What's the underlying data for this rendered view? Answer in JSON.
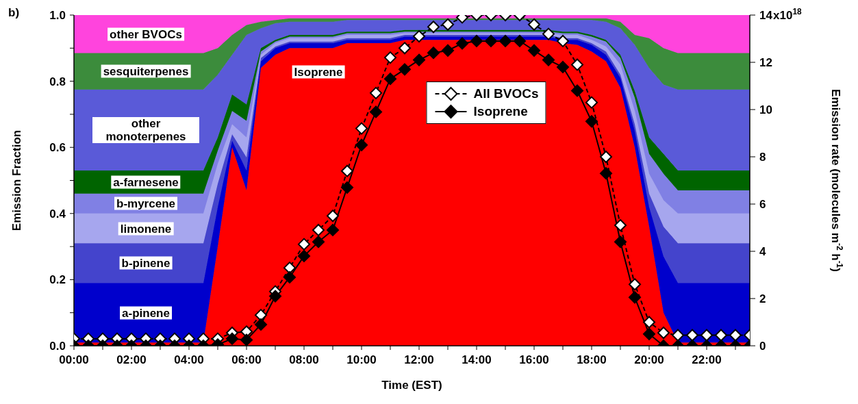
{
  "chart_data": {
    "type": "area",
    "stacked": true,
    "annotations": [
      "b)",
      "x10$^{18}$"
    ],
    "xlabel": "Time (EST)",
    "ylabel": "Emission Fraction",
    "y2label": "Emission rate (molecules m$^{-2}$ h$^{-1}$)",
    "legend": "top",
    "x": [
      0,
      0.5,
      1,
      1.5,
      2,
      2.5,
      3,
      3.5,
      4,
      4.5,
      5,
      5.5,
      6,
      6.5,
      7,
      7.5,
      8,
      8.5,
      9,
      9.5,
      10,
      10.5,
      11,
      11.5,
      12,
      12.5,
      13,
      13.5,
      14,
      14.5,
      15,
      15.5,
      16,
      16.5,
      17,
      17.5,
      18,
      18.5,
      19,
      19.5,
      20,
      20.5,
      21,
      21.5,
      22,
      22.5,
      23,
      23.5
    ],
    "xlim": [
      0,
      23.5
    ],
    "xticks": [
      {
        "value": 0,
        "label": "00:00"
      },
      {
        "value": 1,
        "label": null
      },
      {
        "value": 2,
        "label": "02:00"
      },
      {
        "value": 3,
        "label": null
      },
      {
        "value": 4,
        "label": "04:00"
      },
      {
        "value": 5,
        "label": null
      },
      {
        "value": 6,
        "label": "06:00"
      },
      {
        "value": 7,
        "label": null
      },
      {
        "value": 8,
        "label": "08:00"
      },
      {
        "value": 9,
        "label": null
      },
      {
        "value": 10,
        "label": "10:00"
      },
      {
        "value": 11,
        "label": null
      },
      {
        "value": 12,
        "label": "12:00"
      },
      {
        "value": 13,
        "label": null
      },
      {
        "value": 14,
        "label": "14:00"
      },
      {
        "value": 15,
        "label": null
      },
      {
        "value": 16,
        "label": "16:00"
      },
      {
        "value": 17,
        "label": null
      },
      {
        "value": 18,
        "label": "18:00"
      },
      {
        "value": 19,
        "label": null
      },
      {
        "value": 20,
        "label": "20:00"
      },
      {
        "value": 21,
        "label": null
      },
      {
        "value": 22,
        "label": "22:00"
      },
      {
        "value": 23,
        "label": null
      }
    ],
    "ylim": [
      0,
      1
    ],
    "yticks": [
      {
        "value": 0,
        "label": "0.0"
      },
      {
        "value": 0.1,
        "label": null
      },
      0.2,
      {
        "value": 0.3,
        "label": null
      },
      0.4,
      {
        "value": 0.5,
        "label": null
      },
      0.6,
      {
        "value": 0.7,
        "label": null
      },
      0.8,
      {
        "value": 0.9,
        "label": null
      },
      {
        "value": 1,
        "label": "1.0"
      }
    ],
    "y2lim": [
      0,
      14
    ],
    "y2ticks": [
      0,
      2,
      4,
      6,
      8,
      10,
      12,
      14
    ],
    "series": [
      {
        "name": "Isoprene",
        "color": "#ff0000",
        "values": [
          0.01,
          0.01,
          0.01,
          0.01,
          0.01,
          0.01,
          0.01,
          0.01,
          0.01,
          0.01,
          0.3,
          0.6,
          0.47,
          0.84,
          0.88,
          0.9,
          0.9,
          0.9,
          0.9,
          0.915,
          0.915,
          0.915,
          0.915,
          0.925,
          0.925,
          0.925,
          0.925,
          0.925,
          0.925,
          0.925,
          0.925,
          0.925,
          0.925,
          0.925,
          0.915,
          0.91,
          0.89,
          0.86,
          0.78,
          0.6,
          0.36,
          0.1,
          0.01,
          0.01,
          0.01,
          0.01,
          0.01,
          0.01
        ]
      },
      {
        "name": "a-pinene",
        "color": "#0000cc",
        "values": [
          0.18,
          0.18,
          0.18,
          0.18,
          0.18,
          0.18,
          0.18,
          0.18,
          0.18,
          0.18,
          0.12,
          0.02,
          0.06,
          0.02,
          0.02,
          0.015,
          0.015,
          0.015,
          0.015,
          0.01,
          0.01,
          0.01,
          0.01,
          0.01,
          0.01,
          0.01,
          0.01,
          0.01,
          0.01,
          0.01,
          0.01,
          0.01,
          0.01,
          0.01,
          0.01,
          0.015,
          0.02,
          0.02,
          0.03,
          0.05,
          0.06,
          0.17,
          0.18,
          0.18,
          0.18,
          0.18,
          0.18,
          0.18
        ]
      },
      {
        "name": "b-pinene",
        "color": "#4444cc",
        "values": [
          0.12,
          0.12,
          0.12,
          0.12,
          0.12,
          0.12,
          0.12,
          0.12,
          0.12,
          0.12,
          0.07,
          0.02,
          0.04,
          0.01,
          0.005,
          0.005,
          0.005,
          0.005,
          0.005,
          0.005,
          0.005,
          0.005,
          0.005,
          0.005,
          0.005,
          0.005,
          0.005,
          0.005,
          0.005,
          0.005,
          0.005,
          0.005,
          0.005,
          0.005,
          0.005,
          0.005,
          0.005,
          0.01,
          0.01,
          0.02,
          0.04,
          0.09,
          0.12,
          0.12,
          0.12,
          0.12,
          0.12,
          0.12
        ]
      },
      {
        "name": "limonene",
        "color": "#a6a6ee",
        "values": [
          0.09,
          0.09,
          0.09,
          0.09,
          0.09,
          0.09,
          0.09,
          0.09,
          0.09,
          0.09,
          0.06,
          0.03,
          0.06,
          0.01,
          0.01,
          0.01,
          0.01,
          0.01,
          0.01,
          0.01,
          0.01,
          0.01,
          0.01,
          0.005,
          0.005,
          0.005,
          0.005,
          0.005,
          0.005,
          0.005,
          0.005,
          0.005,
          0.005,
          0.005,
          0.01,
          0.01,
          0.01,
          0.015,
          0.03,
          0.04,
          0.06,
          0.08,
          0.09,
          0.09,
          0.09,
          0.09,
          0.09,
          0.09
        ]
      },
      {
        "name": "b-myrcene",
        "color": "#8080e4",
        "values": [
          0.06,
          0.06,
          0.06,
          0.06,
          0.06,
          0.06,
          0.06,
          0.06,
          0.06,
          0.06,
          0.04,
          0.04,
          0.05,
          0.01,
          0.005,
          0.005,
          0.005,
          0.005,
          0.005,
          0.005,
          0.005,
          0.005,
          0.005,
          0.005,
          0.005,
          0.005,
          0.005,
          0.005,
          0.005,
          0.005,
          0.005,
          0.005,
          0.005,
          0.005,
          0.005,
          0.005,
          0.01,
          0.015,
          0.02,
          0.04,
          0.06,
          0.08,
          0.07,
          0.07,
          0.07,
          0.07,
          0.07,
          0.07
        ]
      },
      {
        "name": "a-farnesene",
        "color": "#006400",
        "values": [
          0.07,
          0.07,
          0.07,
          0.07,
          0.07,
          0.07,
          0.07,
          0.07,
          0.07,
          0.07,
          0.04,
          0.05,
          0.05,
          0.01,
          0.005,
          0.005,
          0.005,
          0.005,
          0.005,
          0.005,
          0.005,
          0.005,
          0.005,
          0.005,
          0.005,
          0.005,
          0.005,
          0.005,
          0.005,
          0.005,
          0.005,
          0.005,
          0.005,
          0.005,
          0.005,
          0.005,
          0.005,
          0.005,
          0.01,
          0.02,
          0.05,
          0.06,
          0.06,
          0.06,
          0.06,
          0.06,
          0.06,
          0.06
        ]
      },
      {
        "name": "other monoterpenes",
        "color": "#5a5ad8",
        "values": [
          0.245,
          0.245,
          0.245,
          0.245,
          0.245,
          0.245,
          0.245,
          0.245,
          0.245,
          0.245,
          0.19,
          0.12,
          0.21,
          0.06,
          0.05,
          0.04,
          0.04,
          0.04,
          0.04,
          0.035,
          0.035,
          0.035,
          0.035,
          0.03,
          0.03,
          0.03,
          0.03,
          0.03,
          0.03,
          0.03,
          0.03,
          0.03,
          0.03,
          0.03,
          0.035,
          0.035,
          0.045,
          0.055,
          0.08,
          0.14,
          0.21,
          0.21,
          0.245,
          0.245,
          0.245,
          0.245,
          0.245,
          0.245
        ]
      },
      {
        "name": "sesquiterpenes",
        "color": "#3c8c3c",
        "values": [
          0.11,
          0.11,
          0.11,
          0.11,
          0.11,
          0.11,
          0.11,
          0.11,
          0.11,
          0.11,
          0.08,
          0.06,
          0.03,
          0.02,
          0.01,
          0.01,
          0.01,
          0.01,
          0.01,
          0.005,
          0.005,
          0.005,
          0.005,
          0.005,
          0.005,
          0.005,
          0.005,
          0.005,
          0.005,
          0.005,
          0.005,
          0.005,
          0.005,
          0.005,
          0.005,
          0.005,
          0.005,
          0.01,
          0.02,
          0.03,
          0.09,
          0.11,
          0.11,
          0.11,
          0.11,
          0.11,
          0.11,
          0.11
        ]
      },
      {
        "name": "other BVOCs",
        "color": "#ff44dd",
        "values": [
          0.115,
          0.115,
          0.115,
          0.115,
          0.115,
          0.115,
          0.115,
          0.115,
          0.115,
          0.115,
          0.1,
          0.06,
          0.03,
          0.02,
          0.015,
          0.01,
          0.01,
          0.01,
          0.01,
          0.01,
          0.01,
          0.01,
          0.01,
          0.01,
          0.01,
          0.01,
          0.01,
          0.01,
          0.01,
          0.01,
          0.01,
          0.01,
          0.01,
          0.01,
          0.01,
          0.01,
          0.01,
          0.01,
          0.02,
          0.06,
          0.07,
          0.1,
          0.115,
          0.115,
          0.115,
          0.115,
          0.115,
          0.115
        ]
      },
      {
        "name": "All BVOCs",
        "type": "line",
        "axis": "y2",
        "line_style": "dashed",
        "marker": "diamond",
        "color": "#000000",
        "values": [
          0.3,
          0.3,
          0.3,
          0.3,
          0.3,
          0.3,
          0.3,
          0.3,
          0.3,
          0.3,
          0.3,
          0.55,
          0.6,
          1.3,
          2.3,
          3.3,
          4.3,
          4.9,
          5.5,
          7.4,
          9.2,
          10.7,
          12.2,
          12.6,
          13.1,
          13.5,
          13.6,
          13.9,
          14.0,
          14.0,
          14.0,
          14.0,
          13.6,
          13.2,
          12.9,
          11.9,
          10.3,
          8.0,
          5.1,
          2.6,
          1.0,
          0.55,
          0.45,
          0.45,
          0.45,
          0.45,
          0.45,
          0.45
        ]
      },
      {
        "name": "Isoprene",
        "type": "line",
        "axis": "y2",
        "line_style": "solid",
        "marker": "diamond",
        "color": "#000000",
        "values": [
          0,
          0,
          0,
          0,
          0,
          0,
          0,
          0,
          0,
          0,
          0.05,
          0.3,
          0.25,
          0.9,
          2.1,
          2.9,
          3.8,
          4.4,
          4.9,
          6.7,
          8.5,
          9.9,
          11.3,
          11.7,
          12.1,
          12.4,
          12.5,
          12.8,
          12.9,
          12.9,
          12.9,
          12.9,
          12.5,
          12.1,
          11.8,
          10.8,
          9.5,
          7.3,
          4.4,
          2.05,
          0.5,
          0,
          0,
          0,
          0,
          0,
          0,
          0
        ]
      }
    ]
  }
}
